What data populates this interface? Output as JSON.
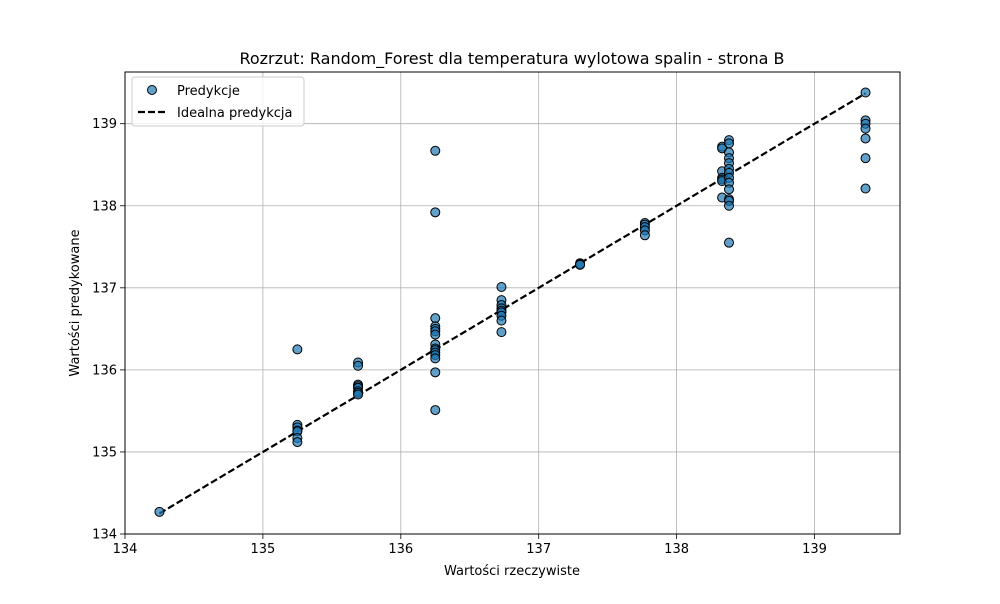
{
  "chart_data": {
    "type": "scatter",
    "title": "Rozrzut: Random_Forest dla temperatura wylotowa spalin - strona B",
    "xlabel": "Wartości rzeczywiste",
    "ylabel": "Wartości predykowane",
    "xlim": [
      134.0,
      139.62
    ],
    "ylim": [
      134.0,
      139.63
    ],
    "xticks": [
      134,
      135,
      136,
      137,
      138,
      139
    ],
    "yticks": [
      134,
      135,
      136,
      137,
      138,
      139
    ],
    "xtick_labels": [
      "134",
      "135",
      "136",
      "137",
      "138",
      "139"
    ],
    "ytick_labels": [
      "134",
      "135",
      "136",
      "137",
      "138",
      "139"
    ],
    "grid": true,
    "legend_position": "upper-left",
    "series": [
      {
        "name": "Predykcje",
        "kind": "scatter",
        "color": "#1f77b4",
        "edgecolor": "#000000",
        "points": [
          [
            134.25,
            134.27
          ],
          [
            135.25,
            136.25
          ],
          [
            135.25,
            135.33
          ],
          [
            135.25,
            135.3
          ],
          [
            135.25,
            135.26
          ],
          [
            135.25,
            135.25
          ],
          [
            135.25,
            135.17
          ],
          [
            135.25,
            135.12
          ],
          [
            135.69,
            136.09
          ],
          [
            135.69,
            136.05
          ],
          [
            135.69,
            135.82
          ],
          [
            135.69,
            135.8
          ],
          [
            135.69,
            135.78
          ],
          [
            135.69,
            135.74
          ],
          [
            135.69,
            135.72
          ],
          [
            135.69,
            135.7
          ],
          [
            136.25,
            138.67
          ],
          [
            136.25,
            137.92
          ],
          [
            136.25,
            136.63
          ],
          [
            136.25,
            136.53
          ],
          [
            136.25,
            136.5
          ],
          [
            136.25,
            136.47
          ],
          [
            136.25,
            136.43
          ],
          [
            136.25,
            136.31
          ],
          [
            136.25,
            136.26
          ],
          [
            136.25,
            136.24
          ],
          [
            136.25,
            136.21
          ],
          [
            136.25,
            136.18
          ],
          [
            136.25,
            136.14
          ],
          [
            136.25,
            135.97
          ],
          [
            136.25,
            135.51
          ],
          [
            136.73,
            137.01
          ],
          [
            136.73,
            136.85
          ],
          [
            136.73,
            136.79
          ],
          [
            136.73,
            136.75
          ],
          [
            136.73,
            136.72
          ],
          [
            136.73,
            136.7
          ],
          [
            136.73,
            136.66
          ],
          [
            136.73,
            136.6
          ],
          [
            136.73,
            136.46
          ],
          [
            137.3,
            137.3
          ],
          [
            137.3,
            137.29
          ],
          [
            137.3,
            137.28
          ],
          [
            137.77,
            137.79
          ],
          [
            137.77,
            137.77
          ],
          [
            137.77,
            137.74
          ],
          [
            137.77,
            137.7
          ],
          [
            137.77,
            137.64
          ],
          [
            138.33,
            138.72
          ],
          [
            138.33,
            138.7
          ],
          [
            138.33,
            138.42
          ],
          [
            138.33,
            138.34
          ],
          [
            138.33,
            138.32
          ],
          [
            138.33,
            138.3
          ],
          [
            138.33,
            138.1
          ],
          [
            138.38,
            138.8
          ],
          [
            138.38,
            138.76
          ],
          [
            138.38,
            138.65
          ],
          [
            138.38,
            138.58
          ],
          [
            138.38,
            138.52
          ],
          [
            138.38,
            138.45
          ],
          [
            138.38,
            138.4
          ],
          [
            138.38,
            138.34
          ],
          [
            138.38,
            138.28
          ],
          [
            138.38,
            138.2
          ],
          [
            138.38,
            138.08
          ],
          [
            138.38,
            138.06
          ],
          [
            138.38,
            138.0
          ],
          [
            138.38,
            137.55
          ],
          [
            139.37,
            139.38
          ],
          [
            139.37,
            139.04
          ],
          [
            139.37,
            139.0
          ],
          [
            139.37,
            138.94
          ],
          [
            139.37,
            138.82
          ],
          [
            139.37,
            138.58
          ],
          [
            139.37,
            138.21
          ]
        ]
      },
      {
        "name": "Idealna predykcja",
        "kind": "line",
        "style": "dashed",
        "color": "#000000",
        "x": [
          134.25,
          139.37
        ],
        "y": [
          134.25,
          139.37
        ]
      }
    ]
  }
}
